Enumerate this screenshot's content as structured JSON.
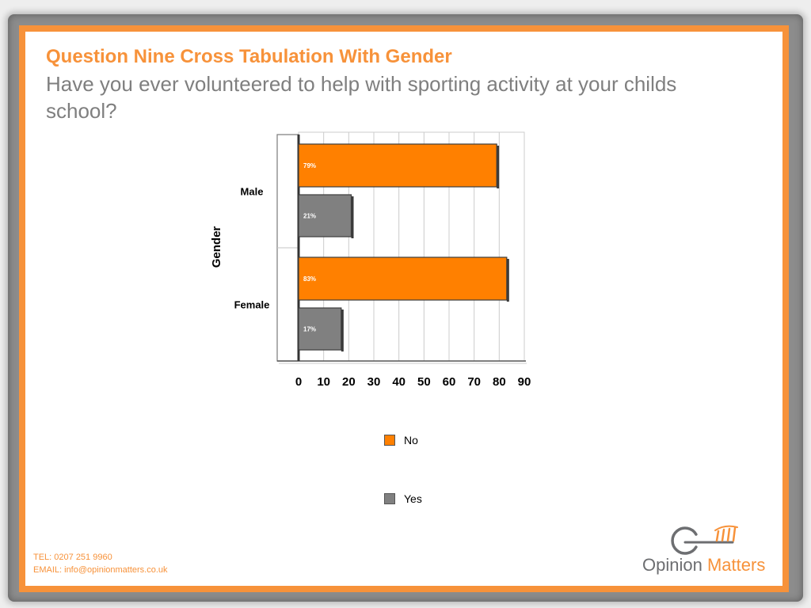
{
  "slide": {
    "title": "Question Nine Cross Tabulation With Gender",
    "subtitle": "Have you ever volunteered to help with sporting activity at your childs school?"
  },
  "footer": {
    "tel": "TEL: 0207 251 9960",
    "email": "EMAIL: info@opinionmatters.co.uk"
  },
  "logo": {
    "icon": "key-icon",
    "word1": "Opinion",
    "word2": "Matters"
  },
  "colors": {
    "accent": "#F7923A",
    "subtitle": "#7F7F7F",
    "logo_gray": "#6D6E71"
  },
  "chart_data": {
    "type": "bar",
    "orientation": "horizontal",
    "categories": [
      "Male",
      "Female"
    ],
    "xlabel": "",
    "ylabel": "Gender",
    "xlim": [
      0,
      90
    ],
    "xticks": [
      0,
      10,
      20,
      30,
      40,
      50,
      60,
      70,
      80,
      90
    ],
    "grid": true,
    "legend": "bottom",
    "series": [
      {
        "name": "No",
        "values": [
          79,
          83
        ],
        "labels": [
          "79%",
          "83%"
        ],
        "color": "#FF8000"
      },
      {
        "name": "Yes",
        "values": [
          21,
          17
        ],
        "labels": [
          "21%",
          "17%"
        ],
        "color": "#808080"
      }
    ]
  }
}
